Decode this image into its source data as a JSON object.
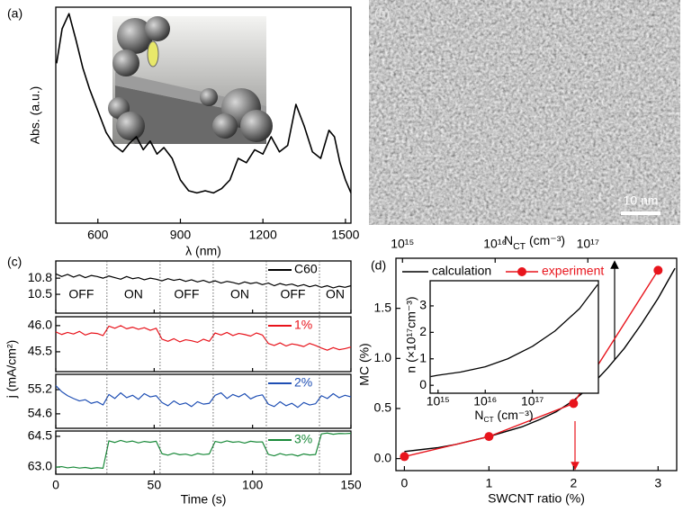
{
  "chart_data": [
    {
      "type": "spectrum",
      "label": "(a)",
      "xlabel": "λ (nm)",
      "ylabel": "Abs. (a.u.)",
      "color": "#000000",
      "x": [
        450,
        470,
        495,
        520,
        545,
        570,
        600,
        630,
        660,
        690,
        715,
        740,
        765,
        790,
        815,
        840,
        870,
        900,
        930,
        960,
        990,
        1020,
        1050,
        1080,
        1110,
        1140,
        1170,
        1200,
        1230,
        1260,
        1290,
        1320,
        1350,
        1380,
        1410,
        1440,
        1460,
        1480,
        1500,
        1520
      ],
      "values": [
        0.74,
        0.9,
        0.97,
        0.85,
        0.72,
        0.62,
        0.52,
        0.42,
        0.36,
        0.33,
        0.37,
        0.4,
        0.34,
        0.38,
        0.32,
        0.35,
        0.3,
        0.2,
        0.15,
        0.14,
        0.15,
        0.14,
        0.16,
        0.2,
        0.3,
        0.28,
        0.34,
        0.32,
        0.4,
        0.33,
        0.36,
        0.55,
        0.45,
        0.33,
        0.3,
        0.43,
        0.4,
        0.28,
        0.2,
        0.14
      ],
      "xlim": [
        447,
        1520
      ],
      "ylim": [
        0,
        1
      ],
      "xticks": [
        600,
        900,
        1200,
        1500
      ]
    },
    {
      "type": "image",
      "label": "(b)",
      "scale_bar": "10 nm"
    },
    {
      "type": "strips",
      "label": "(c)",
      "xlabel": "Time (s)",
      "ylabel": "j (mA/cm²)",
      "xlim": [
        0,
        150
      ],
      "xticks": [
        0,
        50,
        100,
        150
      ],
      "switch_times": [
        26,
        53,
        80,
        107,
        134
      ],
      "state_labels": [
        "OFF",
        "ON",
        "OFF",
        "ON",
        "OFF",
        "ON"
      ],
      "x": [
        0,
        3,
        6,
        9,
        12,
        15,
        18,
        21,
        24,
        27,
        30,
        33,
        36,
        39,
        42,
        45,
        48,
        51,
        54,
        57,
        60,
        63,
        66,
        69,
        72,
        75,
        78,
        81,
        84,
        87,
        90,
        93,
        96,
        99,
        102,
        105,
        108,
        111,
        114,
        117,
        120,
        123,
        126,
        129,
        132,
        135,
        138,
        141,
        144,
        147,
        150
      ],
      "series": [
        {
          "name": "C60",
          "color": "#000000",
          "ylim": [
            10.15,
            11.12
          ],
          "yticks": [
            10.5,
            10.8
          ],
          "values": [
            10.88,
            10.83,
            10.87,
            10.82,
            10.86,
            10.81,
            10.85,
            10.83,
            10.8,
            10.84,
            10.81,
            10.78,
            10.83,
            10.79,
            10.81,
            10.77,
            10.8,
            10.78,
            10.75,
            10.79,
            10.76,
            10.78,
            10.74,
            10.77,
            10.73,
            10.76,
            10.72,
            10.75,
            10.71,
            10.74,
            10.72,
            10.69,
            10.73,
            10.7,
            10.72,
            10.68,
            10.71,
            10.66,
            10.7,
            10.67,
            10.69,
            10.65,
            10.68,
            10.64,
            10.67,
            10.63,
            10.66,
            10.62,
            10.65,
            10.63,
            10.66
          ]
        },
        {
          "name": "1%",
          "color": "#e8141c",
          "ylim": [
            45.12,
            46.17
          ],
          "yticks": [
            45.5,
            {
              "value": 46.0,
              "label": "46.0"
            }
          ],
          "values": [
            45.88,
            45.83,
            45.87,
            45.84,
            45.89,
            45.82,
            45.86,
            45.85,
            45.81,
            45.99,
            45.95,
            46.0,
            45.94,
            45.97,
            45.93,
            45.96,
            45.91,
            45.95,
            45.74,
            45.7,
            45.75,
            45.69,
            45.73,
            45.71,
            45.68,
            45.74,
            45.7,
            45.86,
            45.82,
            45.87,
            45.81,
            45.85,
            45.83,
            45.8,
            45.86,
            45.82,
            45.66,
            45.62,
            45.67,
            45.61,
            45.65,
            45.63,
            45.6,
            45.66,
            45.62,
            45.57,
            45.53,
            45.58,
            45.54,
            45.56,
            45.59
          ]
        },
        {
          "name": "2%",
          "color": "#1f4fb4",
          "ylim": [
            54.24,
            55.58
          ],
          "yticks": [
            54.6,
            55.2
          ],
          "values": [
            55.3,
            55.15,
            55.05,
            54.98,
            54.92,
            54.95,
            54.86,
            54.9,
            54.82,
            55.08,
            54.98,
            55.12,
            55.0,
            55.06,
            54.96,
            55.1,
            55.02,
            55.05,
            54.88,
            54.8,
            54.92,
            54.83,
            54.87,
            54.78,
            54.9,
            54.84,
            54.86,
            55.06,
            55.12,
            54.98,
            55.08,
            55.02,
            55.1,
            54.97,
            55.04,
            55.07,
            54.84,
            54.78,
            54.9,
            54.8,
            54.86,
            54.76,
            54.88,
            54.82,
            54.85,
            55.05,
            54.98,
            55.1,
            55.0,
            55.06,
            55.02
          ]
        },
        {
          "name": "3%",
          "color": "#1a8a3a",
          "ylim": [
            62.65,
            64.76
          ],
          "yticks": [
            {
              "value": 63.0,
              "label": "63.0"
            },
            64.5
          ],
          "values": [
            62.99,
            63.02,
            62.96,
            63.0,
            62.95,
            62.98,
            62.93,
            62.97,
            62.94,
            64.28,
            64.2,
            64.3,
            64.22,
            64.27,
            64.18,
            64.25,
            64.21,
            64.26,
            63.65,
            63.58,
            63.68,
            63.6,
            63.63,
            63.56,
            63.66,
            63.61,
            63.64,
            64.25,
            64.19,
            64.28,
            64.21,
            64.24,
            64.17,
            64.26,
            64.22,
            64.23,
            63.62,
            63.55,
            63.66,
            63.58,
            63.62,
            63.54,
            63.64,
            63.59,
            63.61,
            64.62,
            64.66,
            64.6,
            64.64,
            64.63,
            64.65
          ]
        }
      ]
    },
    {
      "type": "combo",
      "label": "(d)",
      "xlabel": "SWCNT ratio (%)",
      "ylabel": "MC (%)",
      "xlim": [
        -0.1,
        3.22
      ],
      "ylim": [
        -0.12,
        2.0
      ],
      "xticks": [
        0,
        1,
        2,
        3
      ],
      "yticks": [
        {
          "value": 0.0,
          "label": "0.0"
        },
        0.5,
        {
          "value": 1.0,
          "label": "1.0"
        },
        1.5
      ],
      "x2label": [
        "N",
        "CT",
        " (cm⁻³)"
      ],
      "x2log": true,
      "x2lim": [
        850000000000000.0,
        9.1e+17
      ],
      "x2ticks": [
        {
          "value": 1000000000000000.0,
          "label": "10¹⁵"
        },
        {
          "value": 1e+16,
          "label": "10¹⁶"
        },
        {
          "value": 1e+17,
          "label": "10¹⁷"
        }
      ],
      "series": [
        {
          "name": "calculation",
          "color": "#000000",
          "x": [
            0,
            0.2,
            0.4,
            0.6,
            0.8,
            1,
            1.2,
            1.4,
            1.6,
            1.8,
            2,
            2.2,
            2.4,
            2.6,
            2.8,
            3,
            3.2
          ],
          "values": [
            0.07,
            0.09,
            0.11,
            0.14,
            0.18,
            0.22,
            0.27,
            0.32,
            0.39,
            0.47,
            0.58,
            0.72,
            0.9,
            1.1,
            1.34,
            1.6,
            1.9
          ]
        },
        {
          "name": "experiment",
          "color": "#e8141c",
          "x": [
            0,
            1,
            2,
            3
          ],
          "values": [
            0.02,
            0.22,
            0.55,
            1.88
          ]
        }
      ],
      "inset": {
        "xlabel": [
          "N",
          "CT",
          " (cm⁻³)"
        ],
        "ylabel": "n (×10¹⁷cm⁻³)",
        "xlog": true,
        "xlim": [
          680000000000000.0,
          2.5e+18
        ],
        "ylim": [
          -0.3,
          3.95
        ],
        "xticks": [
          {
            "value": 1000000000000000.0,
            "label": "10¹⁵"
          },
          {
            "value": 1e+16,
            "label": "10¹⁶"
          },
          {
            "value": 1e+17,
            "label": "10¹⁷"
          }
        ],
        "yticks": [
          0,
          1,
          2,
          3
        ],
        "x": [
          700000000000000.0,
          1000000000000000.0,
          3000000000000000.0,
          1e+16,
          3e+16,
          1e+17,
          3e+17,
          1e+18,
          2.4e+18
        ],
        "values": [
          0.33,
          0.38,
          0.5,
          0.7,
          1.0,
          1.47,
          2.05,
          2.9,
          3.8
        ]
      }
    }
  ]
}
